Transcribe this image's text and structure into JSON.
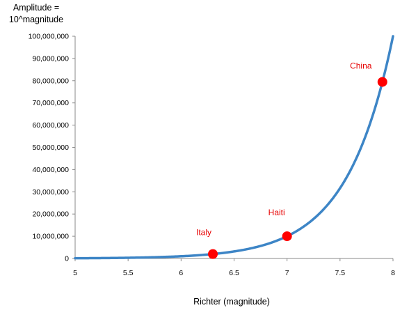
{
  "chart_data": {
    "type": "line",
    "title": "",
    "ylabel_lines": [
      "Amplitude =",
      "10^magnitude"
    ],
    "xlabel": "Richter (magnitude)",
    "xlim": [
      5,
      8
    ],
    "ylim": [
      0,
      100000000
    ],
    "x_ticks": [
      5,
      5.5,
      6,
      6.5,
      7,
      7.5,
      8
    ],
    "x_tick_labels": [
      "5",
      "5.5",
      "6",
      "6.5",
      "7",
      "7.5",
      "8"
    ],
    "y_ticks": [
      0,
      10000000,
      20000000,
      30000000,
      40000000,
      50000000,
      60000000,
      70000000,
      80000000,
      90000000,
      100000000
    ],
    "y_tick_labels": [
      "0",
      "10,000,000",
      "20,000,000",
      "30,000,000",
      "40,000,000",
      "50,000,000",
      "60,000,000",
      "70,000,000",
      "80,000,000",
      "90,000,000",
      "100,000,000"
    ],
    "grid": false,
    "legend": "none",
    "series": [
      {
        "function": "10^x",
        "color": "#3d85c6",
        "x_start": 5,
        "x_end": 8
      }
    ],
    "points": [
      {
        "label": "Italy",
        "x": 6.3,
        "y": 1995262
      },
      {
        "label": "Haiti",
        "x": 7.0,
        "y": 10000000
      },
      {
        "label": "China",
        "x": 7.9,
        "y": 79432823
      }
    ],
    "point_color": "#ff0000",
    "annotation_color": "#e60000"
  }
}
